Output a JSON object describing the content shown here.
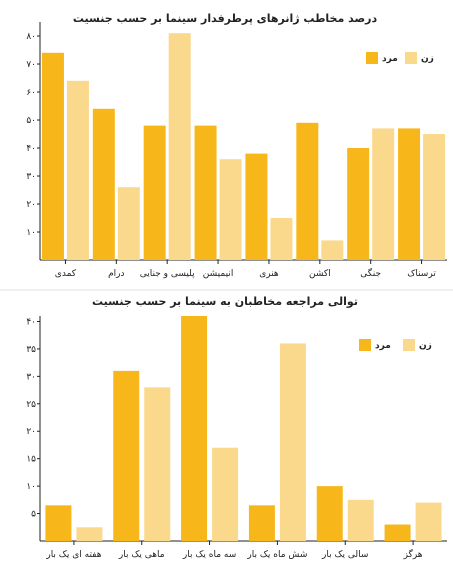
{
  "chart_data": [
    {
      "type": "bar",
      "title": "درصد مخاطب ژانرهای پرطرفدار سینما بر حسب جنسیت",
      "categories": [
        "کمدی",
        "درام",
        "پلیسی و جنایی",
        "انیمیشن",
        "هنری",
        "اکشن",
        "جنگی",
        "ترسناک"
      ],
      "series": [
        {
          "name": "مرد",
          "color": "#f7b71b",
          "values": [
            74,
            54,
            48,
            48,
            38,
            49,
            40,
            47
          ]
        },
        {
          "name": "زن",
          "color": "#fbd98c",
          "values": [
            64,
            26,
            81,
            36,
            15,
            7,
            47,
            45
          ]
        }
      ],
      "yticks": [
        "۱۰",
        "۲۰",
        "۳۰",
        "۴۰",
        "۵۰",
        "۶۰",
        "۷۰",
        "۸۰"
      ],
      "ylim": [
        0,
        85
      ],
      "legend": "top-right"
    },
    {
      "type": "bar",
      "title": "توالی مراجعه مخاطبان به سینما بر حسب جنسیت",
      "categories": [
        "هفته ای یک بار",
        "ماهی یک بار",
        "سه ماه یک بار",
        "شش ماه یک بار",
        "سالی یک بار",
        "هرگز"
      ],
      "series": [
        {
          "name": "مرد",
          "color": "#f7b71b",
          "values": [
            6.5,
            31,
            41,
            6.5,
            10,
            3
          ]
        },
        {
          "name": "زن",
          "color": "#fbd98c",
          "values": [
            2.5,
            28,
            17,
            36,
            7.5,
            7
          ]
        }
      ],
      "yticks": [
        "۵",
        "۱۰",
        "۱۵",
        "۲۰",
        "۲۵",
        "۳۰",
        "۳۵",
        "۴۰"
      ],
      "ylim": [
        0,
        41
      ],
      "legend": "top-right"
    }
  ]
}
